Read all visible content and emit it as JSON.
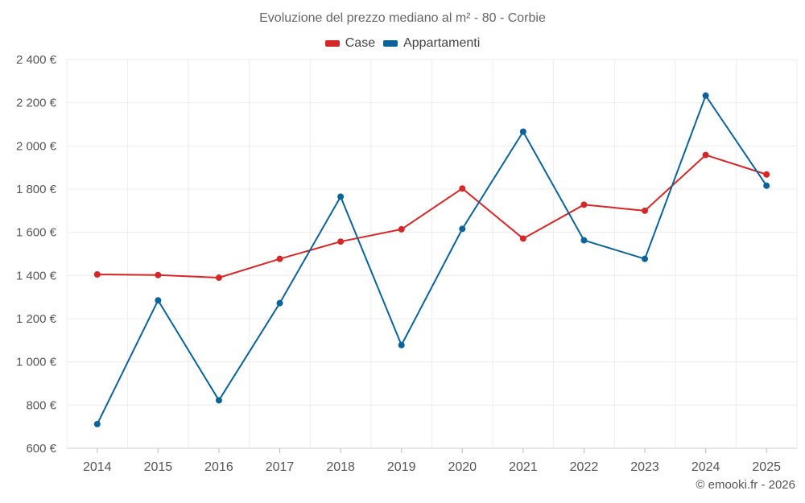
{
  "chart_data": {
    "type": "line",
    "title": "Evoluzione del prezzo mediano al m² - 80 - Corbie",
    "categories": [
      "2014",
      "2015",
      "2016",
      "2017",
      "2018",
      "2019",
      "2020",
      "2021",
      "2022",
      "2023",
      "2024",
      "2025"
    ],
    "series": [
      {
        "name": "Case",
        "color": "#d62728",
        "values": [
          1405,
          1402,
          1390,
          1477,
          1557,
          1614,
          1803,
          1571,
          1728,
          1700,
          1958,
          1868
        ]
      },
      {
        "name": "Appartamenti",
        "color": "#0b6399",
        "values": [
          712,
          1285,
          822,
          1272,
          1765,
          1078,
          1616,
          2066,
          1563,
          1477,
          2233,
          1816
        ]
      }
    ],
    "ylim": [
      600,
      2400
    ],
    "yticks": [
      600,
      800,
      1000,
      1200,
      1400,
      1600,
      1800,
      2000,
      2200,
      2400
    ],
    "ytick_labels": [
      "600 €",
      "800 €",
      "1 000 €",
      "1 200 €",
      "1 400 €",
      "1 600 €",
      "1 800 €",
      "2 000 €",
      "2 200 €",
      "2 400 €"
    ],
    "grid": true,
    "legend_position": "top-center"
  },
  "credit": "© emooki.fr - 2026"
}
